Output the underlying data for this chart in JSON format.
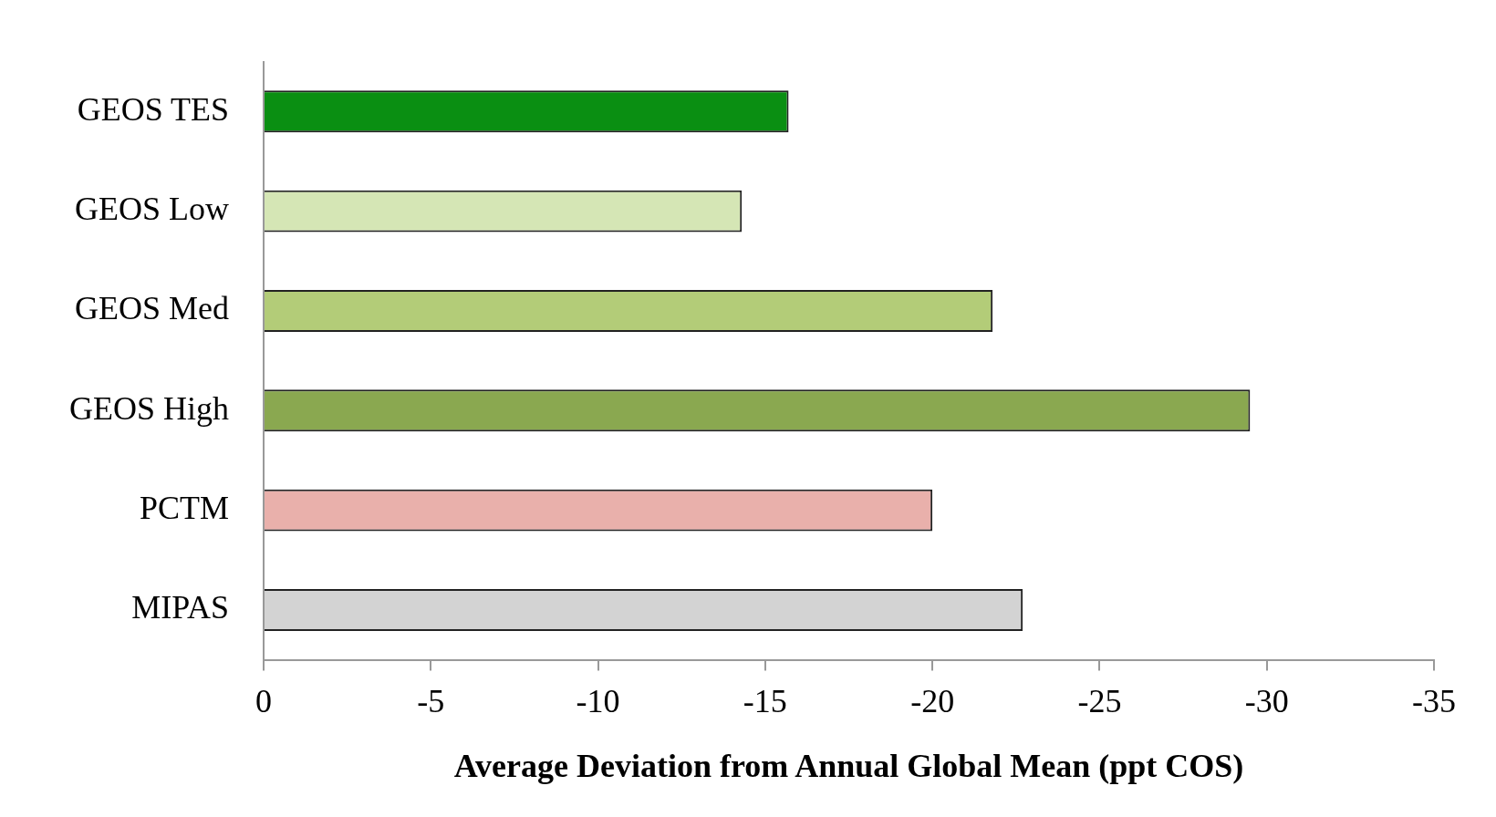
{
  "chart_data": {
    "type": "bar",
    "orientation": "horizontal",
    "xlabel": "Average Deviation from Annual Global Mean (ppt COS)",
    "categories": [
      "GEOS TES",
      "GEOS Low",
      "GEOS Med",
      "GEOS High",
      "PCTM",
      "MIPAS"
    ],
    "values": [
      -15.7,
      -14.3,
      -21.8,
      -29.5,
      -20.0,
      -22.7
    ],
    "colors": [
      "#0a8f12",
      "#d5e6b5",
      "#b3cc78",
      "#8aa850",
      "#e9b0ab",
      "#d3d3d3"
    ],
    "xlim": [
      0,
      -35
    ],
    "xticks": [
      0,
      -5,
      -10,
      -15,
      -20,
      -25,
      -30,
      -35
    ]
  }
}
